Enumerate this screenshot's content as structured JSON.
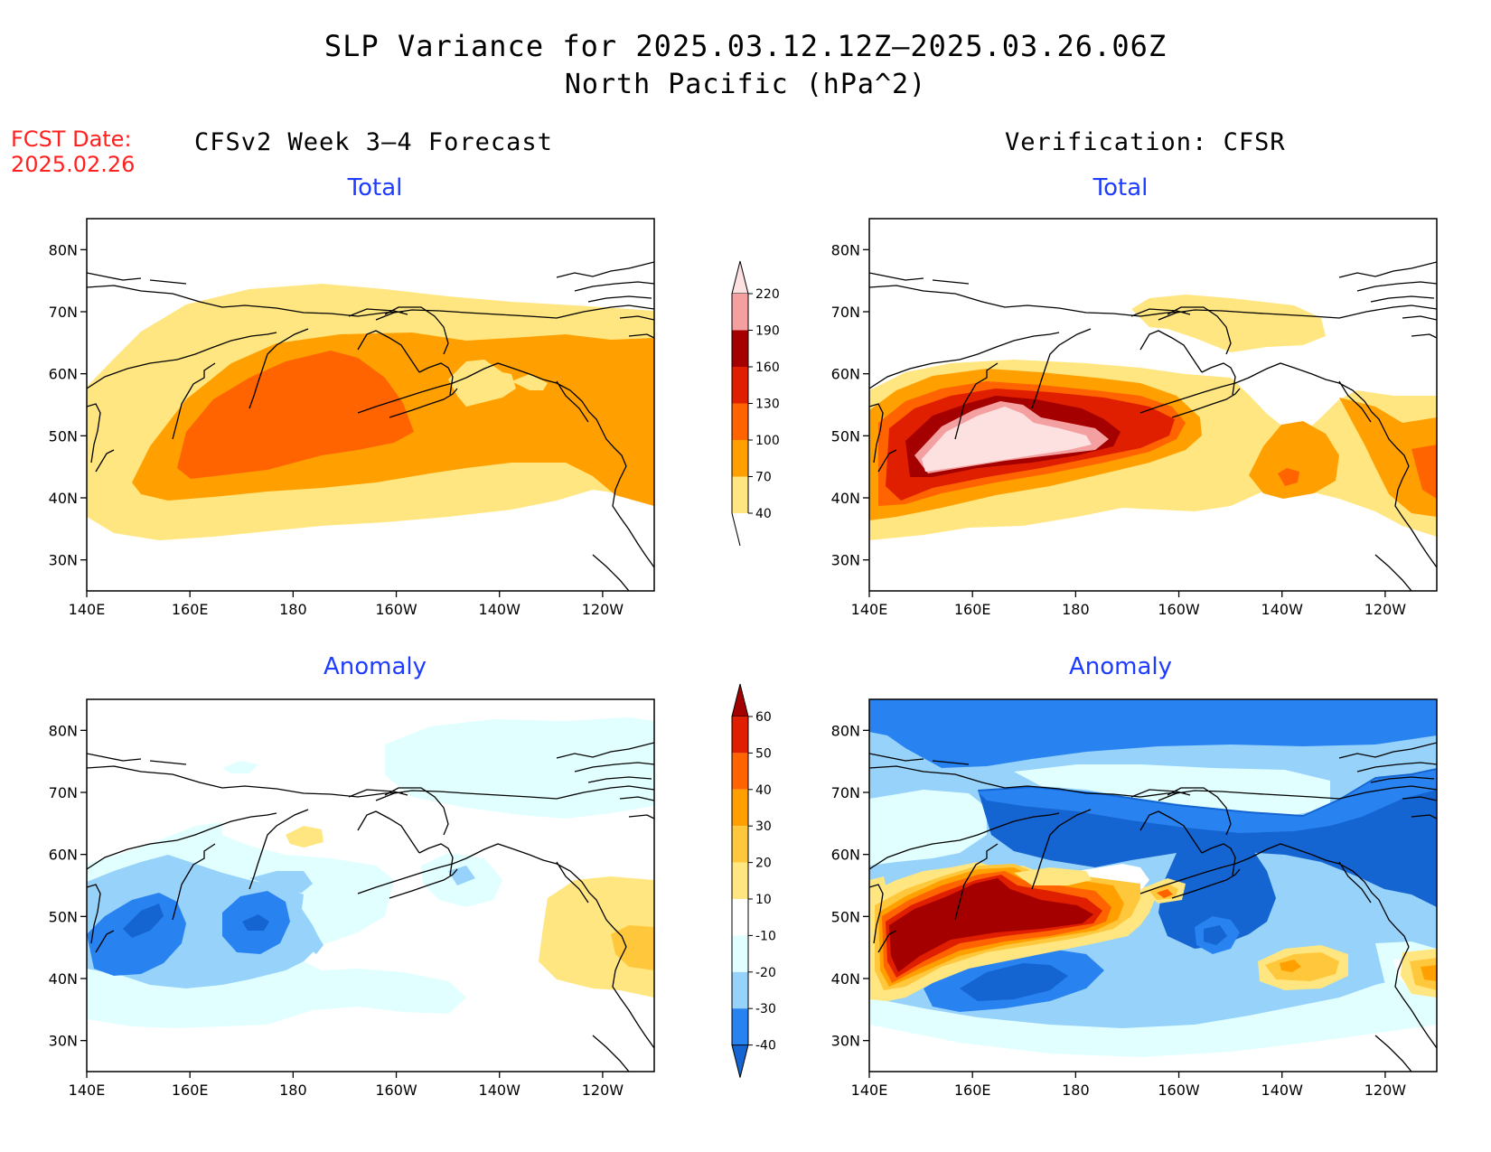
{
  "title": "SLP Variance for 2025.03.12.12Z–2025.03.26.06Z",
  "subtitle": "North Pacific (hPa^2)",
  "forecast_date": {
    "label": "FCST Date:",
    "value": "2025.02.26"
  },
  "columns": {
    "left": "CFSv2 Week 3–4 Forecast",
    "right": "Verification: CFSR"
  },
  "panels": {
    "top_left": "Total",
    "top_right": "Total",
    "bottom_left": "Anomaly",
    "bottom_right": "Anomaly"
  },
  "axes": {
    "lat_labels": [
      "80N",
      "70N",
      "60N",
      "50N",
      "40N",
      "30N"
    ],
    "lat_values": [
      80,
      70,
      60,
      50,
      40,
      30
    ],
    "lon_labels": [
      "140E",
      "160E",
      "180",
      "160W",
      "140W",
      "120W"
    ],
    "lon_values": [
      140,
      160,
      180,
      200,
      220,
      240
    ],
    "lat_range": [
      25,
      85
    ],
    "lon_range": [
      140,
      250
    ]
  },
  "colorbars": {
    "total": {
      "labels": [
        "40",
        "70",
        "100",
        "130",
        "160",
        "190",
        "220"
      ],
      "colors": [
        "#ffe680",
        "#ffa000",
        "#ff6400",
        "#e01e00",
        "#a50000",
        "#f4a0a0",
        "#fde1e1"
      ]
    },
    "anomaly": {
      "labels": [
        "-40",
        "-30",
        "-20",
        "-10",
        "10",
        "20",
        "30",
        "40",
        "50",
        "60"
      ],
      "colors": [
        "#1464d2",
        "#2882f0",
        "#96d2fa",
        "#e1ffff",
        "#ffffff",
        "#ffe680",
        "#ffc83c",
        "#ffa000",
        "#ff6400",
        "#e01e00",
        "#a50000"
      ]
    }
  }
}
